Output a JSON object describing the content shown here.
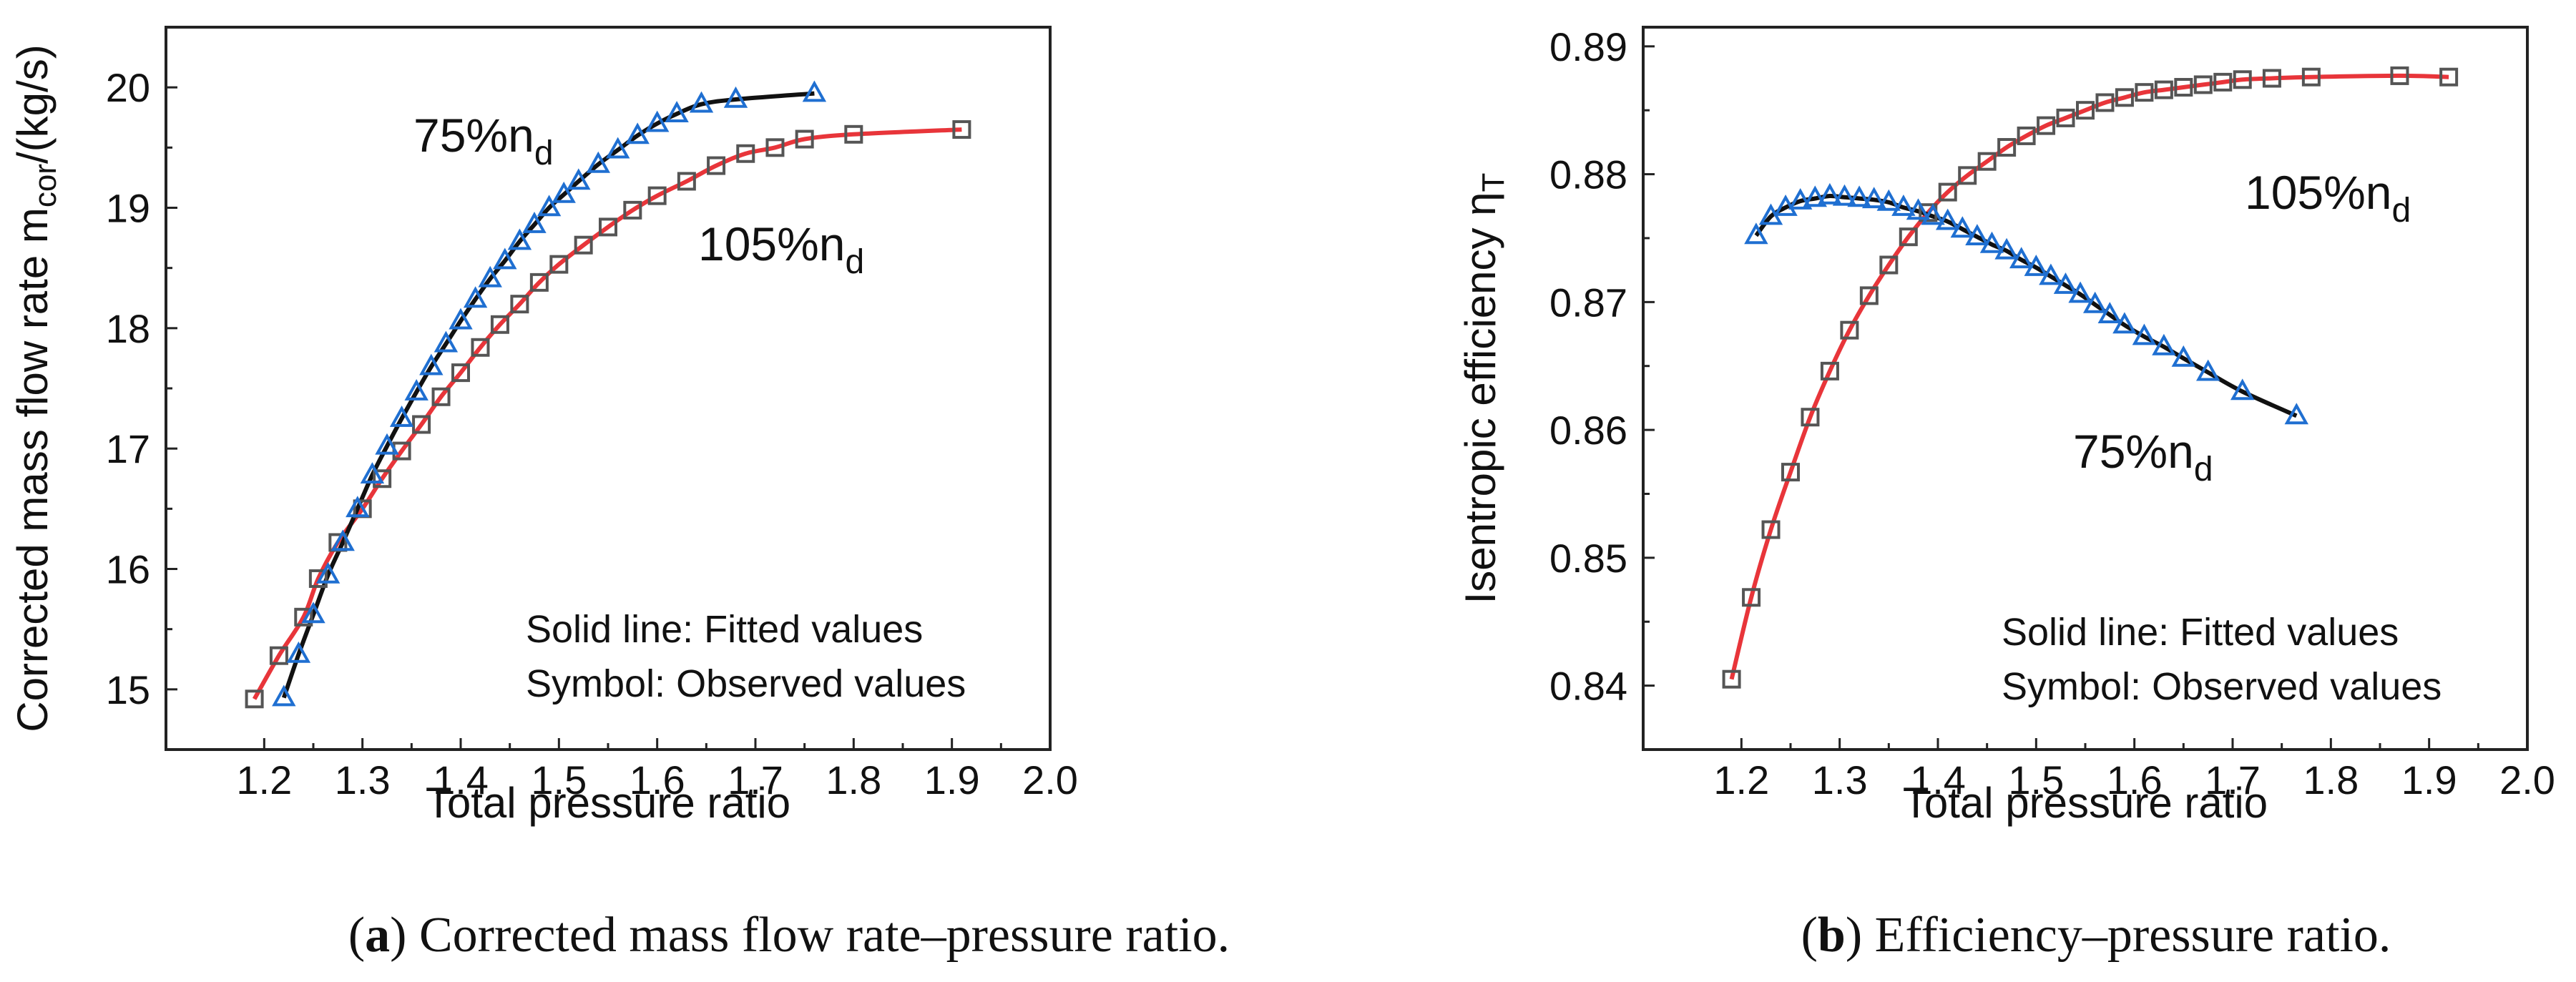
{
  "chart_data": [
    {
      "type": "line",
      "caption": {
        "label": "a",
        "text": ") Corrected mass flow rate–pressure ratio."
      },
      "title": "",
      "xlabel": "Total pressure ratio",
      "ylabel": {
        "main": "Corrected mass flow rate m",
        "sub": "cor",
        "tail": "/(kg/s)"
      },
      "xlim": [
        1.1,
        2.0
      ],
      "ylim": [
        14.5,
        20.5
      ],
      "xticks": [
        1.2,
        1.3,
        1.4,
        1.5,
        1.6,
        1.7,
        1.8,
        1.9,
        2.0
      ],
      "yticks": [
        15,
        16,
        17,
        18,
        19,
        20
      ],
      "notes": [
        "Solid line: Fitted values",
        "Symbol: Observed values"
      ],
      "series": [
        {
          "name": "105%nd",
          "label": {
            "main": "105%n",
            "sub": "d"
          },
          "marker": "square",
          "marker_color": "#555555",
          "line_color": "#e8353a",
          "x": [
            1.19,
            1.215,
            1.24,
            1.255,
            1.275,
            1.3,
            1.32,
            1.34,
            1.36,
            1.38,
            1.4,
            1.42,
            1.44,
            1.46,
            1.48,
            1.5,
            1.525,
            1.55,
            1.575,
            1.6,
            1.63,
            1.66,
            1.69,
            1.72,
            1.75,
            1.8,
            1.91
          ],
          "y": [
            14.92,
            15.28,
            15.6,
            15.92,
            16.22,
            16.5,
            16.75,
            16.98,
            17.2,
            17.43,
            17.63,
            17.84,
            18.03,
            18.2,
            18.38,
            18.53,
            18.69,
            18.84,
            18.98,
            19.1,
            19.22,
            19.35,
            19.45,
            19.5,
            19.57,
            19.61,
            19.65
          ]
        },
        {
          "name": "75%nd",
          "label": {
            "main": "75%n",
            "sub": "d"
          },
          "marker": "triangle",
          "marker_color": "#1f6fd1",
          "line_color": "#111111",
          "x": [
            1.22,
            1.235,
            1.25,
            1.265,
            1.28,
            1.295,
            1.31,
            1.325,
            1.34,
            1.355,
            1.37,
            1.385,
            1.4,
            1.415,
            1.43,
            1.445,
            1.46,
            1.475,
            1.49,
            1.505,
            1.52,
            1.54,
            1.56,
            1.58,
            1.6,
            1.62,
            1.645,
            1.68,
            1.76
          ],
          "y": [
            14.93,
            15.29,
            15.62,
            15.95,
            16.22,
            16.5,
            16.78,
            17.02,
            17.25,
            17.47,
            17.68,
            17.87,
            18.06,
            18.24,
            18.41,
            18.56,
            18.72,
            18.86,
            19.0,
            19.11,
            19.22,
            19.36,
            19.48,
            19.6,
            19.7,
            19.78,
            19.86,
            19.9,
            19.95
          ]
        }
      ]
    },
    {
      "type": "line",
      "caption": {
        "label": "b",
        "text": ") Efficiency–pressure ratio."
      },
      "title": "",
      "xlabel": "Total pressure ratio",
      "ylabel": {
        "main": "Isentropic efficiency η",
        "sub": "T",
        "tail": ""
      },
      "xlim": [
        1.1,
        2.0
      ],
      "ylim": [
        0.835,
        0.8915
      ],
      "xticks": [
        1.2,
        1.3,
        1.4,
        1.5,
        1.6,
        1.7,
        1.8,
        1.9,
        2.0
      ],
      "yticks": [
        0.84,
        0.85,
        0.86,
        0.87,
        0.88,
        0.89
      ],
      "notes": [
        "Solid line: Fitted values",
        "Symbol: Observed values"
      ],
      "series": [
        {
          "name": "105%nd",
          "label": {
            "main": "105%n",
            "sub": "d"
          },
          "marker": "square",
          "marker_color": "#555555",
          "line_color": "#e8353a",
          "x": [
            1.19,
            1.21,
            1.23,
            1.25,
            1.27,
            1.29,
            1.31,
            1.33,
            1.35,
            1.37,
            1.39,
            1.41,
            1.43,
            1.45,
            1.47,
            1.49,
            1.51,
            1.53,
            1.55,
            1.57,
            1.59,
            1.61,
            1.63,
            1.65,
            1.67,
            1.69,
            1.71,
            1.74,
            1.78,
            1.87,
            1.92
          ],
          "y": [
            0.8405,
            0.8469,
            0.8522,
            0.8567,
            0.861,
            0.8646,
            0.8678,
            0.8705,
            0.8729,
            0.8751,
            0.877,
            0.8786,
            0.8799,
            0.881,
            0.8821,
            0.883,
            0.8838,
            0.8844,
            0.885,
            0.8856,
            0.886,
            0.8864,
            0.8866,
            0.8868,
            0.887,
            0.8872,
            0.8874,
            0.8875,
            0.8876,
            0.8877,
            0.8876
          ]
        },
        {
          "name": "75%nd",
          "label": {
            "main": "75%n",
            "sub": "d"
          },
          "marker": "triangle",
          "marker_color": "#1f6fd1",
          "line_color": "#111111",
          "x": [
            1.215,
            1.23,
            1.245,
            1.26,
            1.275,
            1.29,
            1.305,
            1.32,
            1.335,
            1.35,
            1.365,
            1.38,
            1.395,
            1.41,
            1.425,
            1.44,
            1.455,
            1.47,
            1.485,
            1.5,
            1.515,
            1.53,
            1.545,
            1.56,
            1.575,
            1.59,
            1.61,
            1.63,
            1.65,
            1.675,
            1.71,
            1.765
          ],
          "y": [
            0.8752,
            0.8767,
            0.8774,
            0.8779,
            0.8781,
            0.8783,
            0.8782,
            0.8781,
            0.878,
            0.8778,
            0.8774,
            0.8771,
            0.8767,
            0.8763,
            0.8757,
            0.8751,
            0.8745,
            0.874,
            0.8733,
            0.8727,
            0.872,
            0.8713,
            0.8706,
            0.8698,
            0.869,
            0.8682,
            0.8673,
            0.8665,
            0.8656,
            0.8645,
            0.863,
            0.8611
          ]
        }
      ]
    }
  ]
}
